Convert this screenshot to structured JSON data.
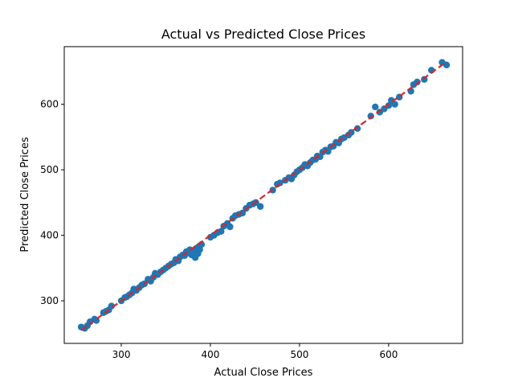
{
  "chart_data": {
    "type": "scatter",
    "title": "Actual vs Predicted Close Prices",
    "xlabel": "Actual Close Prices",
    "ylabel": "Predicted Close Prices",
    "xlim": [
      236,
      683
    ],
    "ylim": [
      235,
      688
    ],
    "xticks": [
      300,
      400,
      500,
      600
    ],
    "yticks": [
      300,
      400,
      500,
      600
    ],
    "grid": false,
    "marker_color": "#1f77b4",
    "reference_line": {
      "style": "dashed",
      "color": "#d62728",
      "from": [
        255,
        255
      ],
      "to": [
        665,
        665
      ]
    },
    "points": [
      [
        255,
        260
      ],
      [
        259,
        258
      ],
      [
        262,
        262
      ],
      [
        265,
        268
      ],
      [
        270,
        272
      ],
      [
        272,
        270
      ],
      [
        280,
        282
      ],
      [
        283,
        284
      ],
      [
        286,
        286
      ],
      [
        289,
        292
      ],
      [
        300,
        300
      ],
      [
        304,
        305
      ],
      [
        306,
        306
      ],
      [
        309,
        309
      ],
      [
        312,
        312
      ],
      [
        314,
        318
      ],
      [
        317,
        316
      ],
      [
        320,
        320
      ],
      [
        323,
        324
      ],
      [
        326,
        326
      ],
      [
        330,
        333
      ],
      [
        333,
        330
      ],
      [
        336,
        336
      ],
      [
        338,
        342
      ],
      [
        341,
        340
      ],
      [
        344,
        344
      ],
      [
        347,
        347
      ],
      [
        350,
        350
      ],
      [
        353,
        353
      ],
      [
        356,
        356
      ],
      [
        359,
        358
      ],
      [
        361,
        363
      ],
      [
        364,
        361
      ],
      [
        366,
        367
      ],
      [
        369,
        370
      ],
      [
        371,
        369
      ],
      [
        373,
        375
      ],
      [
        375,
        373
      ],
      [
        377,
        378
      ],
      [
        379,
        370
      ],
      [
        381,
        377
      ],
      [
        383,
        366
      ],
      [
        384,
        380
      ],
      [
        386,
        372
      ],
      [
        387,
        383
      ],
      [
        388,
        378
      ],
      [
        390,
        386
      ],
      [
        400,
        397
      ],
      [
        404,
        400
      ],
      [
        408,
        404
      ],
      [
        412,
        406
      ],
      [
        415,
        414
      ],
      [
        419,
        418
      ],
      [
        422,
        413
      ],
      [
        425,
        426
      ],
      [
        428,
        430
      ],
      [
        432,
        432
      ],
      [
        436,
        434
      ],
      [
        440,
        441
      ],
      [
        444,
        446
      ],
      [
        448,
        448
      ],
      [
        451,
        450
      ],
      [
        456,
        444
      ],
      [
        470,
        469
      ],
      [
        475,
        478
      ],
      [
        478,
        480
      ],
      [
        484,
        484
      ],
      [
        488,
        488
      ],
      [
        491,
        486
      ],
      [
        494,
        492
      ],
      [
        497,
        497
      ],
      [
        500,
        500
      ],
      [
        503,
        503
      ],
      [
        506,
        508
      ],
      [
        509,
        506
      ],
      [
        512,
        511
      ],
      [
        515,
        515
      ],
      [
        518,
        516
      ],
      [
        520,
        521
      ],
      [
        523,
        520
      ],
      [
        526,
        527
      ],
      [
        529,
        530
      ],
      [
        532,
        528
      ],
      [
        535,
        535
      ],
      [
        538,
        536
      ],
      [
        541,
        542
      ],
      [
        544,
        541
      ],
      [
        547,
        547
      ],
      [
        550,
        549
      ],
      [
        555,
        553
      ],
      [
        558,
        557
      ],
      [
        565,
        563
      ],
      [
        580,
        582
      ],
      [
        585,
        596
      ],
      [
        590,
        588
      ],
      [
        595,
        593
      ],
      [
        600,
        598
      ],
      [
        603,
        606
      ],
      [
        607,
        600
      ],
      [
        612,
        611
      ],
      [
        625,
        620
      ],
      [
        628,
        630
      ],
      [
        632,
        634
      ],
      [
        640,
        638
      ],
      [
        648,
        652
      ],
      [
        660,
        664
      ],
      [
        665,
        660
      ]
    ]
  }
}
